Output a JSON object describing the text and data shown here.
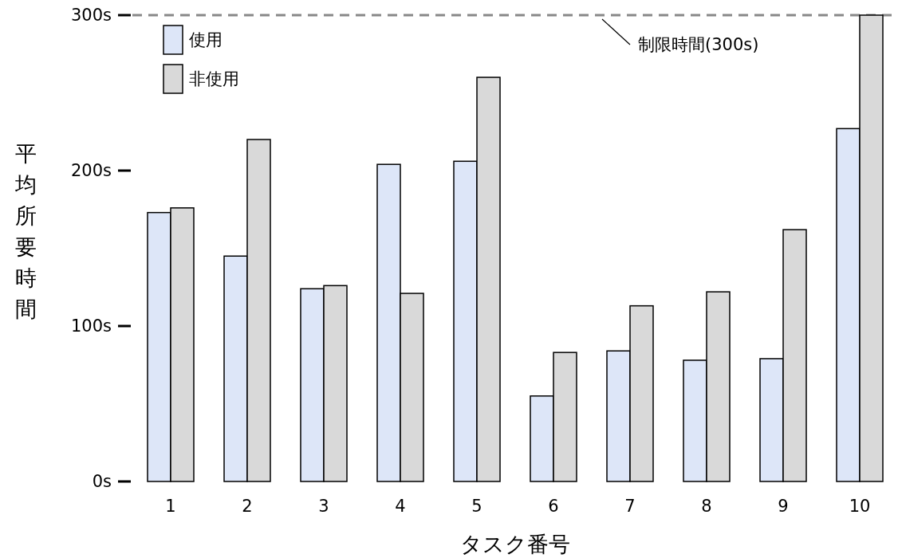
{
  "chart_data": {
    "type": "bar",
    "xlabel": "タスク番号",
    "ylabel": "平均所要時間",
    "categories": [
      "1",
      "2",
      "3",
      "4",
      "5",
      "6",
      "7",
      "8",
      "9",
      "10"
    ],
    "series": [
      {
        "name": "使用",
        "color": "#dde6f8",
        "values": [
          173,
          145,
          124,
          204,
          206,
          55,
          84,
          78,
          79,
          227
        ]
      },
      {
        "name": "非使用",
        "color": "#d9d9d9",
        "values": [
          176,
          220,
          126,
          121,
          260,
          83,
          113,
          122,
          162,
          300
        ]
      }
    ],
    "ylim": [
      0,
      300
    ],
    "yticks": [
      {
        "value": 0,
        "label": "0s"
      },
      {
        "value": 100,
        "label": "100s"
      },
      {
        "value": 200,
        "label": "200s"
      },
      {
        "value": 300,
        "label": "300s"
      }
    ],
    "ref_lines": [
      {
        "axis": "y",
        "value": 300,
        "label": "制限時間(300s)",
        "color": "#888888",
        "line_style": "dashed"
      }
    ],
    "legend": "top left",
    "grid": false
  }
}
